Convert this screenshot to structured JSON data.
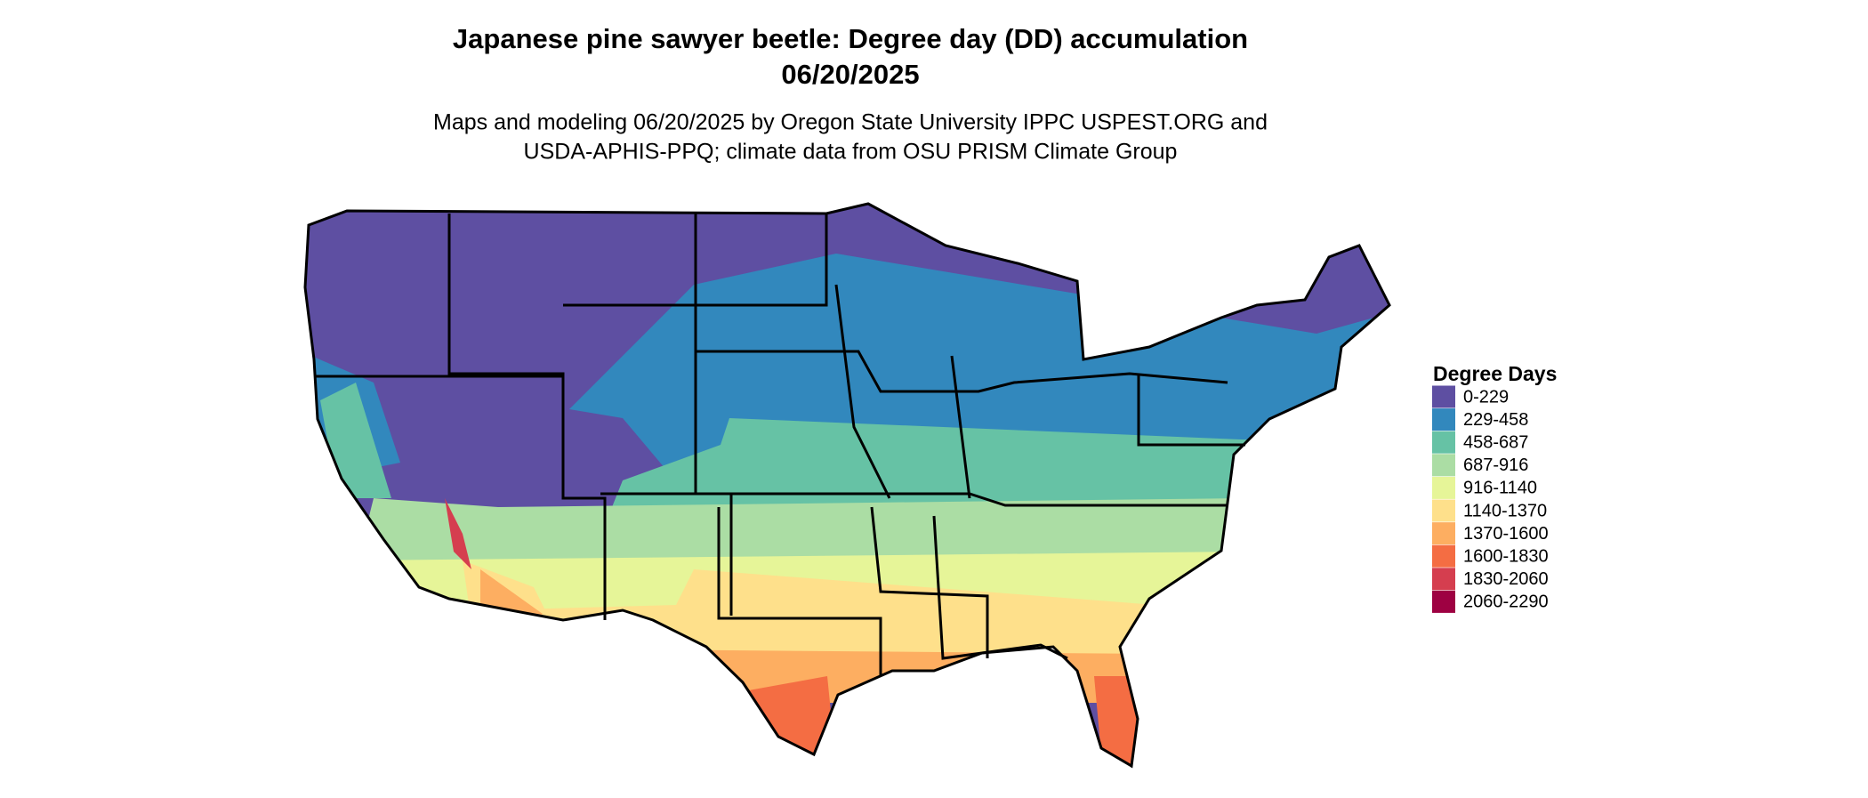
{
  "header": {
    "title": "Japanese pine sawyer beetle: Degree day (DD) accumulation",
    "date": "06/20/2025",
    "subtitle": [
      "Maps and modeling 06/20/2025 by Oregon State University IPPC USPEST.ORG and",
      "USDA-APHIS-PPQ; climate data from OSU PRISM Climate Group"
    ]
  },
  "legend": {
    "title": "Degree Days",
    "items": [
      {
        "label": "0-229",
        "color": "#5E4FA2"
      },
      {
        "label": "229-458",
        "color": "#3288BD"
      },
      {
        "label": "458-687",
        "color": "#66C2A5"
      },
      {
        "label": "687-916",
        "color": "#ABDDA4"
      },
      {
        "label": "916-1140",
        "color": "#E6F598"
      },
      {
        "label": "1140-1370",
        "color": "#FEE08B"
      },
      {
        "label": "1370-1600",
        "color": "#FDAE61"
      },
      {
        "label": "1600-1830",
        "color": "#F46D43"
      },
      {
        "label": "1830-2060",
        "color": "#D53E4F"
      },
      {
        "label": "2060-2290",
        "color": "#9E0142"
      }
    ]
  }
}
